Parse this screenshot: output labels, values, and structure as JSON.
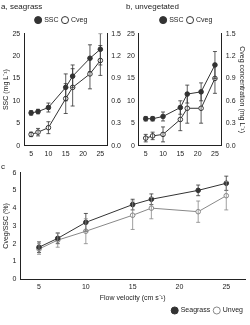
{
  "chart_data": [
    {
      "type": "line",
      "title": "a, seagrass",
      "legend": "top",
      "grid": false,
      "x": [
        5,
        7,
        10,
        15,
        17,
        22,
        25
      ],
      "xlim": [
        3,
        27
      ],
      "xticks": [
        5,
        10,
        15,
        20,
        25
      ],
      "ylabel": "SSC (mg L⁻¹)",
      "ylim": [
        0,
        25
      ],
      "yticks": [
        0,
        5,
        10,
        15,
        20,
        25
      ],
      "y2lim": [
        0,
        1.5
      ],
      "y2ticks": [
        {
          "value": 0,
          "label": "0.0"
        },
        0.3,
        0.6,
        0.9,
        1.2,
        1.5
      ],
      "series": [
        {
          "name": "SSC",
          "color": "#333333",
          "marker": "circle",
          "axis": "y",
          "values": [
            7.3,
            7.6,
            8.5,
            13,
            15.5,
            19.5,
            21.5
          ],
          "error": [
            0.5,
            0.5,
            1,
            3,
            2.5,
            3,
            3.5
          ]
        },
        {
          "name": "Cveg",
          "color": "#333333",
          "marker": "circle_open",
          "axis": "y2",
          "values": [
            0.15,
            0.18,
            0.24,
            0.63,
            0.78,
            0.96,
            1.14
          ],
          "error": [
            0.03,
            0.05,
            0.08,
            0.2,
            0.25,
            0.2,
            0.2
          ]
        }
      ]
    },
    {
      "type": "line",
      "title": "b, unvegetated",
      "legend": "top",
      "grid": false,
      "x": [
        5,
        7,
        10,
        15,
        17,
        21,
        25
      ],
      "xlim": [
        3,
        27
      ],
      "xticks": [
        5,
        10,
        15,
        20,
        25
      ],
      "y2label": "Cveg concentration (mg L⁻¹)",
      "ylim": [
        0,
        25
      ],
      "yticks": [
        0,
        5,
        10,
        15,
        20,
        25
      ],
      "y2lim": [
        0,
        1.5
      ],
      "y2ticks": [
        {
          "value": 0,
          "label": "0.0"
        },
        0.3,
        0.6,
        0.9,
        1.2,
        1.5
      ],
      "series": [
        {
          "name": "SSC",
          "color": "#333333",
          "marker": "circle",
          "axis": "y",
          "values": [
            6,
            6,
            6.5,
            8.5,
            11.5,
            12,
            18
          ],
          "error": [
            0.5,
            0.5,
            1,
            1.5,
            2,
            2,
            3
          ]
        },
        {
          "name": "Cveg",
          "color": "#333333",
          "marker": "circle_open",
          "axis": "y2",
          "values": [
            0.1,
            0.13,
            0.15,
            0.35,
            0.5,
            0.5,
            0.9
          ],
          "error": [
            0.05,
            0.05,
            0.1,
            0.15,
            0.2,
            0.2,
            0.2
          ]
        }
      ]
    },
    {
      "type": "line",
      "title": "c",
      "legend": "lower right",
      "grid": false,
      "x": [
        5,
        7,
        10,
        15,
        17,
        22,
        25
      ],
      "xlabel": "Flow velocity (cm s⁻¹)",
      "xlim": [
        3,
        27
      ],
      "xticks": [
        5,
        10,
        15,
        20,
        25
      ],
      "ylabel": "Cveg/SSC (%)",
      "ylim": [
        0,
        6
      ],
      "yticks": [
        0,
        1,
        2,
        3,
        4,
        5,
        6
      ],
      "series": [
        {
          "name": "Seagrass",
          "color": "#333333",
          "marker": "circle",
          "axis": "y",
          "values": [
            1.8,
            2.3,
            3.2,
            4.2,
            4.5,
            5.0,
            5.4
          ],
          "error": [
            0.3,
            0.3,
            0.5,
            0.3,
            0.3,
            0.3,
            0.4
          ]
        },
        {
          "name": "Unveg",
          "color": "#888888",
          "marker": "circle_open",
          "axis": "y",
          "values": [
            1.7,
            2.2,
            2.7,
            3.6,
            4.0,
            3.8,
            4.7
          ],
          "error": [
            0.3,
            0.4,
            0.7,
            0.8,
            0.6,
            0.6,
            0.8
          ]
        }
      ]
    }
  ]
}
